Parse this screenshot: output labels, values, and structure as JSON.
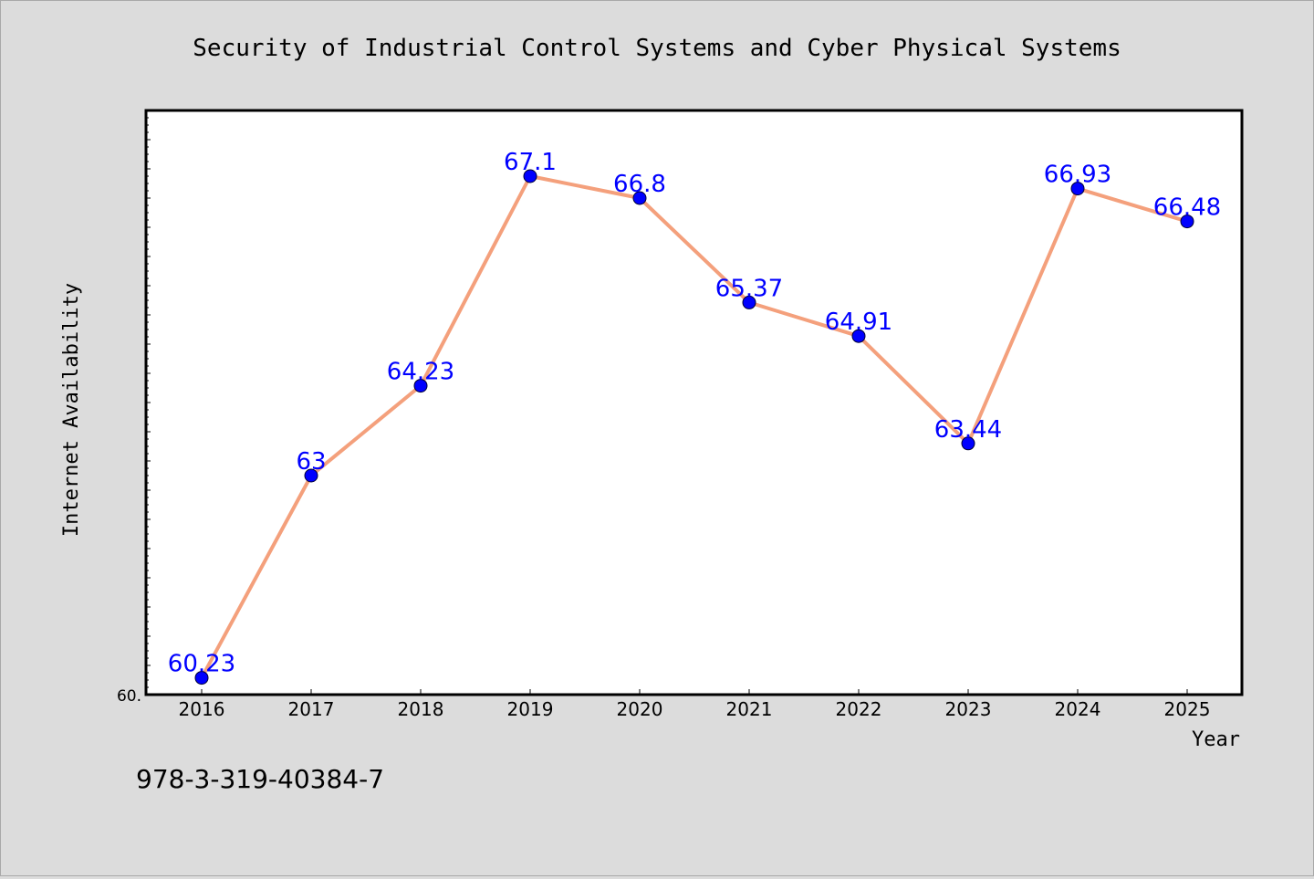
{
  "chart_data": {
    "type": "line",
    "title": "Security of Industrial Control Systems and Cyber Physical Systems",
    "xlabel": "Year",
    "ylabel": "Internet Availability",
    "categories": [
      "2016",
      "2017",
      "2018",
      "2019",
      "2020",
      "2021",
      "2022",
      "2023",
      "2024",
      "2025"
    ],
    "series": [
      {
        "values": [
          60.23,
          63,
          64.23,
          67.1,
          66.8,
          65.37,
          64.91,
          63.44,
          66.93,
          66.48
        ],
        "labels": [
          "60.23",
          "63",
          "64.23",
          "67.1",
          "66.8",
          "65.37",
          "64.91",
          "63.44",
          "66.93",
          "66.48"
        ]
      }
    ],
    "ylim": [
      60.0,
      68.0
    ],
    "y_tick_labels": [
      "60."
    ],
    "grid": false,
    "line_color": "#f4a07c",
    "marker_color": "#0000ff",
    "label_color": "#0000ff",
    "background_color": "#dcdcdc",
    "plot_background": "#ffffff"
  },
  "footnote": "978-3-319-40384-7"
}
